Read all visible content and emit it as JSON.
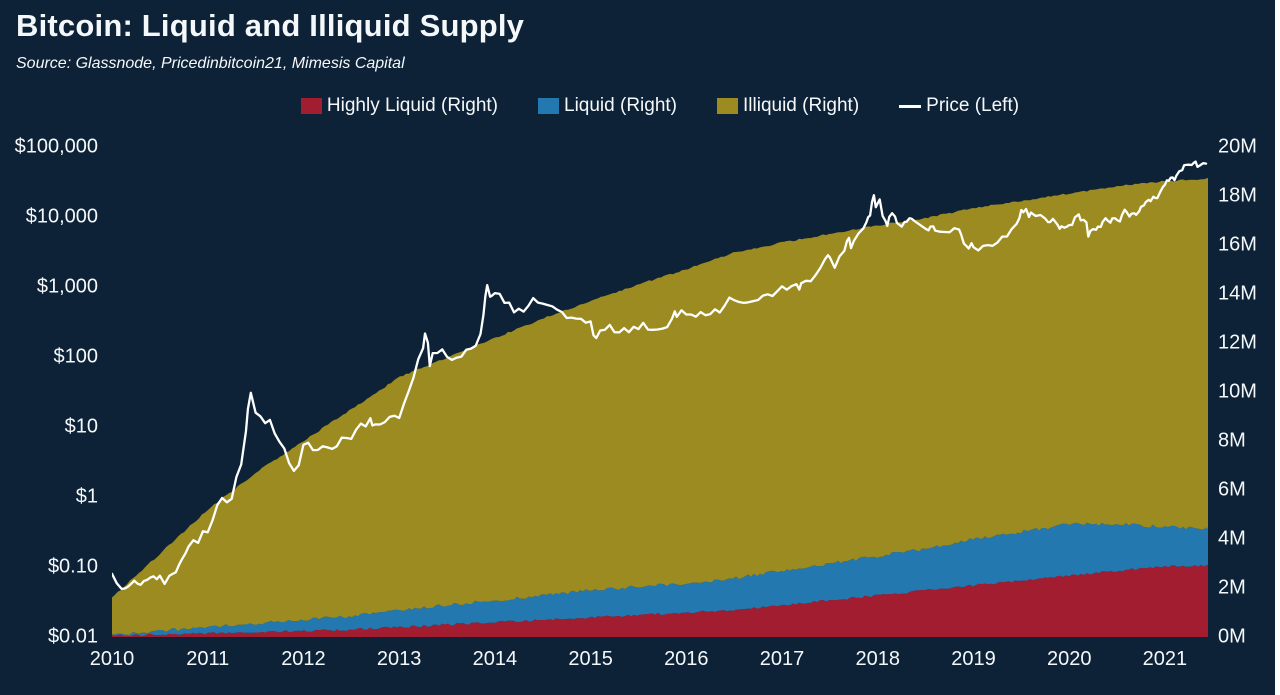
{
  "header": {
    "title": "Bitcoin: Liquid and Illiquid Supply",
    "source": "Source: Glassnode, Pricedinbitcoin21, Mimesis Capital"
  },
  "colors": {
    "background": "#0d2236",
    "highly_liquid": "#a21d2f",
    "liquid": "#2478b0",
    "illiquid": "#9b8b20",
    "price": "#ffffff"
  },
  "chart_data": {
    "type": "area",
    "subtype": "stacked-area-with-log-price-line",
    "title": "Bitcoin: Liquid and Illiquid Supply",
    "legend": [
      {
        "label": "Highly Liquid (Right)",
        "color": "#a21d2f",
        "type": "area"
      },
      {
        "label": "Liquid (Right)",
        "color": "#2478b0",
        "type": "area"
      },
      {
        "label": "Illiquid (Right)",
        "color": "#9b8b20",
        "type": "area"
      },
      {
        "label": "Price (Left)",
        "color": "#ffffff",
        "type": "line"
      }
    ],
    "left_axis": {
      "scale": "log",
      "min": 0.01,
      "max": 100000,
      "ticks": [
        {
          "v": 100000,
          "label": "$100,000"
        },
        {
          "v": 10000,
          "label": "$10,000"
        },
        {
          "v": 1000,
          "label": "$1,000"
        },
        {
          "v": 100,
          "label": "$100"
        },
        {
          "v": 10,
          "label": "$10"
        },
        {
          "v": 1,
          "label": "$1"
        },
        {
          "v": 0.1,
          "label": "$0.10"
        },
        {
          "v": 0.01,
          "label": "$0.01"
        }
      ]
    },
    "right_axis": {
      "scale": "linear",
      "min": 0,
      "max": 20,
      "unit": "M BTC",
      "ticks": [
        {
          "v": 20,
          "label": "20M"
        },
        {
          "v": 18,
          "label": "18M"
        },
        {
          "v": 16,
          "label": "16M"
        },
        {
          "v": 14,
          "label": "14M"
        },
        {
          "v": 12,
          "label": "12M"
        },
        {
          "v": 10,
          "label": "10M"
        },
        {
          "v": 8,
          "label": "8M"
        },
        {
          "v": 6,
          "label": "6M"
        },
        {
          "v": 4,
          "label": "4M"
        },
        {
          "v": 2,
          "label": "2M"
        },
        {
          "v": 0,
          "label": "0M"
        }
      ]
    },
    "x_axis": {
      "min": 2010,
      "max": 2021.45,
      "ticks": [
        {
          "v": 2010,
          "label": "2010"
        },
        {
          "v": 2011,
          "label": "2011"
        },
        {
          "v": 2012,
          "label": "2012"
        },
        {
          "v": 2013,
          "label": "2013"
        },
        {
          "v": 2014,
          "label": "2014"
        },
        {
          "v": 2015,
          "label": "2015"
        },
        {
          "v": 2016,
          "label": "2016"
        },
        {
          "v": 2017,
          "label": "2017"
        },
        {
          "v": 2018,
          "label": "2018"
        },
        {
          "v": 2019,
          "label": "2019"
        },
        {
          "v": 2020,
          "label": "2020"
        },
        {
          "v": 2021,
          "label": "2021"
        }
      ]
    },
    "supply_x": [
      2010.0,
      2010.5,
      2011.0,
      2011.5,
      2012.0,
      2012.5,
      2013.0,
      2013.5,
      2014.0,
      2014.5,
      2015.0,
      2015.5,
      2016.0,
      2016.5,
      2017.0,
      2017.5,
      2018.0,
      2018.5,
      2019.0,
      2019.5,
      2020.0,
      2020.5,
      2021.0,
      2021.45
    ],
    "series": [
      {
        "name": "Highly Liquid",
        "axis": "right",
        "color": "#a21d2f",
        "values": [
          0.05,
          0.1,
          0.15,
          0.2,
          0.25,
          0.3,
          0.4,
          0.5,
          0.6,
          0.7,
          0.8,
          0.9,
          1.0,
          1.1,
          1.3,
          1.5,
          1.7,
          1.9,
          2.1,
          2.3,
          2.5,
          2.7,
          2.9,
          2.9
        ]
      },
      {
        "name": "Liquid",
        "axis": "right",
        "color": "#2478b0",
        "values": [
          0.05,
          0.15,
          0.25,
          0.35,
          0.45,
          0.55,
          0.7,
          0.8,
          0.9,
          1.0,
          1.1,
          1.15,
          1.2,
          1.3,
          1.4,
          1.5,
          1.6,
          1.7,
          1.9,
          2.0,
          2.1,
          1.9,
          1.6,
          1.5
        ]
      },
      {
        "name": "Illiquid",
        "axis": "right",
        "color": "#9b8b20",
        "values": [
          1.5,
          3.15,
          4.8,
          6.15,
          7.3,
          8.45,
          9.5,
          10.1,
          10.7,
          11.3,
          11.8,
          12.35,
          12.8,
          13.3,
          13.4,
          13.45,
          13.5,
          13.5,
          13.5,
          13.5,
          13.5,
          13.8,
          14.1,
          14.3
        ]
      }
    ],
    "price": {
      "name": "Price",
      "axis": "left",
      "color": "#ffffff",
      "x": [
        2010.0,
        2010.05,
        2010.1,
        2010.2,
        2010.3,
        2010.4,
        2010.5,
        2010.55,
        2010.6,
        2010.7,
        2010.8,
        2010.85,
        2010.9,
        2010.95,
        2011.0,
        2011.05,
        2011.1,
        2011.15,
        2011.2,
        2011.25,
        2011.3,
        2011.35,
        2011.4,
        2011.42,
        2011.45,
        2011.5,
        2011.55,
        2011.6,
        2011.65,
        2011.7,
        2011.75,
        2011.8,
        2011.85,
        2011.9,
        2011.95,
        2012.0,
        2012.05,
        2012.1,
        2012.15,
        2012.2,
        2012.25,
        2012.3,
        2012.35,
        2012.4,
        2012.45,
        2012.5,
        2012.55,
        2012.6,
        2012.65,
        2012.7,
        2012.72,
        2012.75,
        2012.8,
        2012.85,
        2012.9,
        2012.95,
        2013.0,
        2013.05,
        2013.1,
        2013.15,
        2013.2,
        2013.25,
        2013.27,
        2013.3,
        2013.32,
        2013.35,
        2013.4,
        2013.45,
        2013.5,
        2013.55,
        2013.6,
        2013.65,
        2013.7,
        2013.75,
        2013.8,
        2013.85,
        2013.88,
        2013.9,
        2013.92,
        2013.95,
        2013.97,
        2014.0,
        2014.05,
        2014.1,
        2014.15,
        2014.2,
        2014.25,
        2014.3,
        2014.35,
        2014.4,
        2014.45,
        2014.5,
        2014.55,
        2014.6,
        2014.65,
        2014.7,
        2014.75,
        2014.8,
        2014.85,
        2014.9,
        2014.95,
        2015.0,
        2015.03,
        2015.06,
        2015.1,
        2015.15,
        2015.2,
        2015.25,
        2015.3,
        2015.35,
        2015.4,
        2015.45,
        2015.5,
        2015.55,
        2015.6,
        2015.65,
        2015.7,
        2015.75,
        2015.8,
        2015.85,
        2015.88,
        2015.9,
        2015.95,
        2016.0,
        2016.05,
        2016.1,
        2016.15,
        2016.2,
        2016.25,
        2016.3,
        2016.35,
        2016.4,
        2016.45,
        2016.5,
        2016.55,
        2016.6,
        2016.65,
        2016.7,
        2016.75,
        2016.8,
        2016.85,
        2016.9,
        2016.95,
        2017.0,
        2017.05,
        2017.1,
        2017.15,
        2017.18,
        2017.2,
        2017.25,
        2017.3,
        2017.35,
        2017.4,
        2017.45,
        2017.48,
        2017.5,
        2017.55,
        2017.6,
        2017.65,
        2017.68,
        2017.7,
        2017.72,
        2017.75,
        2017.8,
        2017.85,
        2017.88,
        2017.9,
        2017.92,
        2017.94,
        2017.96,
        2017.98,
        2018.0,
        2018.02,
        2018.05,
        2018.08,
        2018.1,
        2018.12,
        2018.15,
        2018.18,
        2018.2,
        2018.25,
        2018.28,
        2018.3,
        2018.33,
        2018.35,
        2018.4,
        2018.45,
        2018.5,
        2018.53,
        2018.55,
        2018.58,
        2018.6,
        2018.65,
        2018.7,
        2018.75,
        2018.8,
        2018.85,
        2018.87,
        2018.9,
        2018.92,
        2018.95,
        2018.98,
        2019.0,
        2019.05,
        2019.1,
        2019.15,
        2019.2,
        2019.25,
        2019.3,
        2019.35,
        2019.4,
        2019.45,
        2019.48,
        2019.5,
        2019.52,
        2019.55,
        2019.58,
        2019.6,
        2019.65,
        2019.7,
        2019.75,
        2019.78,
        2019.8,
        2019.83,
        2019.85,
        2019.88,
        2019.9,
        2019.92,
        2019.95,
        2019.98,
        2020.0,
        2020.03,
        2020.06,
        2020.1,
        2020.12,
        2020.15,
        2020.18,
        2020.2,
        2020.22,
        2020.25,
        2020.28,
        2020.3,
        2020.33,
        2020.35,
        2020.38,
        2020.4,
        2020.43,
        2020.45,
        2020.48,
        2020.5,
        2020.53,
        2020.55,
        2020.58,
        2020.6,
        2020.63,
        2020.65,
        2020.68,
        2020.7,
        2020.73,
        2020.75,
        2020.78,
        2020.8,
        2020.83,
        2020.85,
        2020.88,
        2020.9,
        2020.92,
        2020.95,
        2020.98,
        2021.0,
        2021.02,
        2021.04,
        2021.06,
        2021.08,
        2021.1,
        2021.12,
        2021.15,
        2021.18,
        2021.2,
        2021.22,
        2021.25,
        2021.28,
        2021.3,
        2021.32,
        2021.34,
        2021.36,
        2021.38,
        2021.4,
        2021.43
      ],
      "values": [
        0.08,
        0.06,
        0.05,
        0.06,
        0.06,
        0.07,
        0.07,
        0.06,
        0.07,
        0.1,
        0.2,
        0.25,
        0.22,
        0.3,
        0.3,
        0.45,
        0.8,
        0.95,
        0.85,
        1.0,
        1.8,
        3.0,
        8.5,
        17,
        30,
        17,
        15,
        11,
        13,
        8.0,
        6.0,
        4.8,
        3.2,
        2.5,
        3.0,
        5.3,
        5.8,
        4.9,
        4.5,
        5.0,
        4.9,
        5.1,
        5.2,
        6.5,
        6.7,
        6.6,
        9.0,
        11,
        10,
        12.4,
        10.2,
        10.8,
        11.5,
        12.5,
        13.3,
        13.5,
        13.5,
        20,
        33,
        47,
        90,
        140,
        230,
        160,
        70,
        120,
        118,
        128,
        100,
        90,
        97,
        108,
        120,
        135,
        155,
        200,
        380,
        750,
        1100,
        700,
        760,
        800,
        850,
        620,
        580,
        450,
        500,
        450,
        580,
        650,
        600,
        620,
        590,
        500,
        480,
        410,
        380,
        350,
        380,
        350,
        320,
        315,
        220,
        180,
        240,
        250,
        290,
        245,
        235,
        240,
        230,
        250,
        270,
        285,
        260,
        230,
        240,
        250,
        270,
        330,
        460,
        360,
        440,
        430,
        380,
        375,
        415,
        420,
        440,
        455,
        450,
        580,
        750,
        670,
        660,
        610,
        580,
        610,
        640,
        700,
        730,
        750,
        900,
        980,
        890,
        1000,
        1180,
        950,
        1080,
        1200,
        1300,
        1550,
        2000,
        2500,
        2900,
        2500,
        1950,
        2700,
        3400,
        4300,
        4800,
        3800,
        4400,
        5600,
        7200,
        8000,
        9800,
        11000,
        16500,
        19000,
        14500,
        15000,
        17000,
        11000,
        8500,
        6900,
        9500,
        11000,
        10000,
        8200,
        7000,
        7900,
        9000,
        9700,
        9200,
        8400,
        7500,
        6400,
        6700,
        7400,
        7000,
        6300,
        6500,
        6400,
        6500,
        6400,
        6300,
        5500,
        4300,
        3700,
        3300,
        3900,
        3800,
        3500,
        3600,
        3900,
        4000,
        4100,
        5100,
        5700,
        7200,
        8500,
        9000,
        12800,
        11000,
        12200,
        10500,
        10800,
        10300,
        10200,
        9500,
        8300,
        8200,
        9200,
        8500,
        8000,
        7300,
        7200,
        7100,
        7200,
        7200,
        8300,
        9200,
        10100,
        9500,
        8800,
        7900,
        4900,
        6200,
        6400,
        6700,
        6900,
        7200,
        8700,
        9000,
        9500,
        8800,
        9100,
        9200,
        9100,
        9300,
        11000,
        11800,
        11500,
        10300,
        10700,
        11400,
        10800,
        11500,
        13000,
        13800,
        15500,
        16300,
        17800,
        19200,
        18300,
        19400,
        23000,
        27000,
        29000,
        33000,
        31000,
        38000,
        34000,
        31500,
        36000,
        46000,
        48000,
        52000,
        57000,
        54000,
        58000,
        61000,
        58000,
        55000,
        57000,
        60000,
        56000,
        58000
      ]
    }
  }
}
